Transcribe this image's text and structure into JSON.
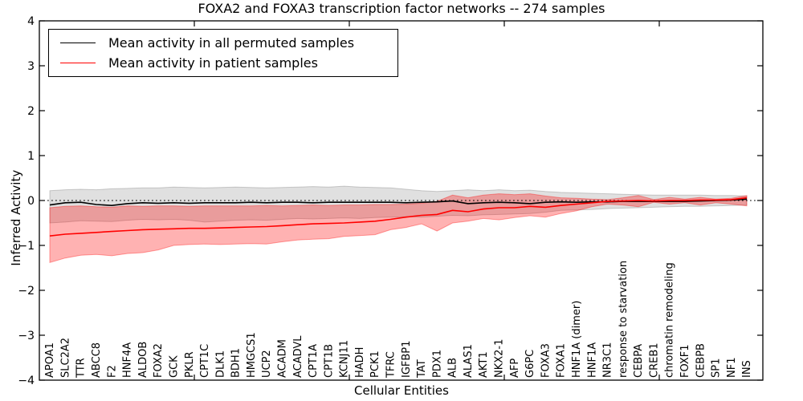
{
  "figure": {
    "title": "FOXA2 and FOXA3 transcription factor networks -- 274 samples",
    "xlabel": "Cellular Entities",
    "ylabel": "Inferred Activity"
  },
  "chart_data": {
    "type": "line",
    "title": "FOXA2 and FOXA3 transcription factor networks -- 274 samples",
    "xlabel": "Cellular Entities",
    "ylabel": "Inferred Activity",
    "ylim": [
      -4,
      4
    ],
    "ytick_labels": [
      "−4",
      "−3",
      "−2",
      "−1",
      "0",
      "1",
      "2",
      "3",
      "4"
    ],
    "grid": false,
    "zero_line": {
      "style": "dotted",
      "color": "#000000",
      "y": 0
    },
    "legend_position": "upper-left",
    "axis_color": "#000000",
    "categories": [
      "APOA1",
      "SLC2A2",
      "TTR",
      "ABCC8",
      "F2",
      "HNF4A",
      "ALDOB",
      "FOXA2",
      "GCK",
      "PKLR",
      "CPT1C",
      "DLK1",
      "BDH1",
      "HMGCS1",
      "UCP2",
      "ACADM",
      "ACADVL",
      "CPT1A",
      "CPT1B",
      "KCNJ11",
      "HADH",
      "PCK1",
      "TFRC",
      "IGFBP1",
      "TAT",
      "PDX1",
      "ALB",
      "ALAS1",
      "AKT1",
      "NKX2-1",
      "AFP",
      "G6PC",
      "FOXA3",
      "FOXA1",
      "HNF1A (dimer)",
      "HNF1A",
      "NR3C1",
      "response to starvation",
      "CEBPA",
      "CREB1",
      "chromatin remodeling",
      "FOXF1",
      "CEBPB",
      "SP1",
      "NF1",
      "INS"
    ],
    "series": [
      {
        "name": "Mean activity in all permuted samples",
        "color": "#000000",
        "band_opacity": 0.12,
        "values": [
          -0.1,
          -0.05,
          -0.04,
          -0.09,
          -0.11,
          -0.07,
          -0.05,
          -0.06,
          -0.05,
          -0.06,
          -0.05,
          -0.05,
          -0.05,
          -0.04,
          -0.05,
          -0.04,
          -0.04,
          -0.05,
          -0.04,
          -0.04,
          -0.04,
          -0.04,
          -0.04,
          -0.05,
          -0.04,
          -0.03,
          -0.01,
          -0.07,
          -0.05,
          -0.04,
          -0.05,
          -0.07,
          -0.04,
          -0.03,
          -0.04,
          -0.03,
          -0.03,
          -0.02,
          -0.02,
          -0.02,
          -0.02,
          -0.02,
          -0.01,
          0.0,
          0.01,
          0.03
        ],
        "band_hi": [
          0.22,
          0.24,
          0.25,
          0.24,
          0.26,
          0.27,
          0.28,
          0.28,
          0.3,
          0.29,
          0.28,
          0.29,
          0.3,
          0.29,
          0.28,
          0.29,
          0.3,
          0.31,
          0.3,
          0.32,
          0.3,
          0.29,
          0.28,
          0.25,
          0.22,
          0.2,
          0.22,
          0.24,
          0.22,
          0.24,
          0.22,
          0.23,
          0.2,
          0.18,
          0.17,
          0.16,
          0.15,
          0.14,
          0.13,
          0.12,
          0.12,
          0.12,
          0.12,
          0.11,
          0.11,
          0.1
        ],
        "band_lo": [
          -0.5,
          -0.48,
          -0.45,
          -0.46,
          -0.47,
          -0.44,
          -0.42,
          -0.43,
          -0.42,
          -0.44,
          -0.48,
          -0.46,
          -0.44,
          -0.43,
          -0.44,
          -0.42,
          -0.4,
          -0.41,
          -0.4,
          -0.39,
          -0.4,
          -0.38,
          -0.37,
          -0.36,
          -0.37,
          -0.35,
          -0.33,
          -0.34,
          -0.32,
          -0.31,
          -0.3,
          -0.29,
          -0.26,
          -0.22,
          -0.21,
          -0.2,
          -0.18,
          -0.17,
          -0.16,
          -0.15,
          -0.14,
          -0.13,
          -0.13,
          -0.12,
          -0.11,
          -0.1
        ]
      },
      {
        "name": "Mean activity in patient samples",
        "color": "#ff0000",
        "band_opacity": 0.3,
        "values": [
          -0.79,
          -0.75,
          -0.73,
          -0.71,
          -0.69,
          -0.67,
          -0.65,
          -0.64,
          -0.63,
          -0.62,
          -0.62,
          -0.61,
          -0.6,
          -0.59,
          -0.58,
          -0.56,
          -0.54,
          -0.52,
          -0.51,
          -0.5,
          -0.48,
          -0.46,
          -0.42,
          -0.37,
          -0.33,
          -0.31,
          -0.22,
          -0.25,
          -0.19,
          -0.16,
          -0.16,
          -0.13,
          -0.15,
          -0.11,
          -0.08,
          -0.05,
          -0.02,
          -0.01,
          0.0,
          -0.01,
          0.0,
          0.0,
          0.01,
          0.01,
          0.02,
          0.06
        ],
        "band_hi": [
          -0.16,
          -0.13,
          -0.12,
          -0.14,
          -0.15,
          -0.12,
          -0.13,
          -0.12,
          -0.12,
          -0.13,
          -0.12,
          -0.12,
          -0.12,
          -0.12,
          -0.11,
          -0.12,
          -0.11,
          -0.1,
          -0.11,
          -0.1,
          -0.1,
          -0.09,
          -0.09,
          -0.08,
          -0.06,
          -0.02,
          0.12,
          0.06,
          0.12,
          0.15,
          0.13,
          0.15,
          0.1,
          0.06,
          0.05,
          0.03,
          0.02,
          0.06,
          0.11,
          0.02,
          0.07,
          0.03,
          0.07,
          0.03,
          0.05,
          0.11
        ],
        "band_lo": [
          -1.38,
          -1.28,
          -1.22,
          -1.2,
          -1.23,
          -1.18,
          -1.16,
          -1.1,
          -1.0,
          -0.98,
          -0.97,
          -0.98,
          -0.97,
          -0.96,
          -0.97,
          -0.92,
          -0.88,
          -0.86,
          -0.85,
          -0.8,
          -0.78,
          -0.76,
          -0.65,
          -0.6,
          -0.52,
          -0.68,
          -0.5,
          -0.46,
          -0.4,
          -0.43,
          -0.38,
          -0.34,
          -0.37,
          -0.29,
          -0.23,
          -0.14,
          -0.08,
          -0.1,
          -0.14,
          -0.04,
          -0.08,
          -0.05,
          -0.1,
          -0.05,
          -0.08,
          -0.12
        ]
      }
    ]
  }
}
